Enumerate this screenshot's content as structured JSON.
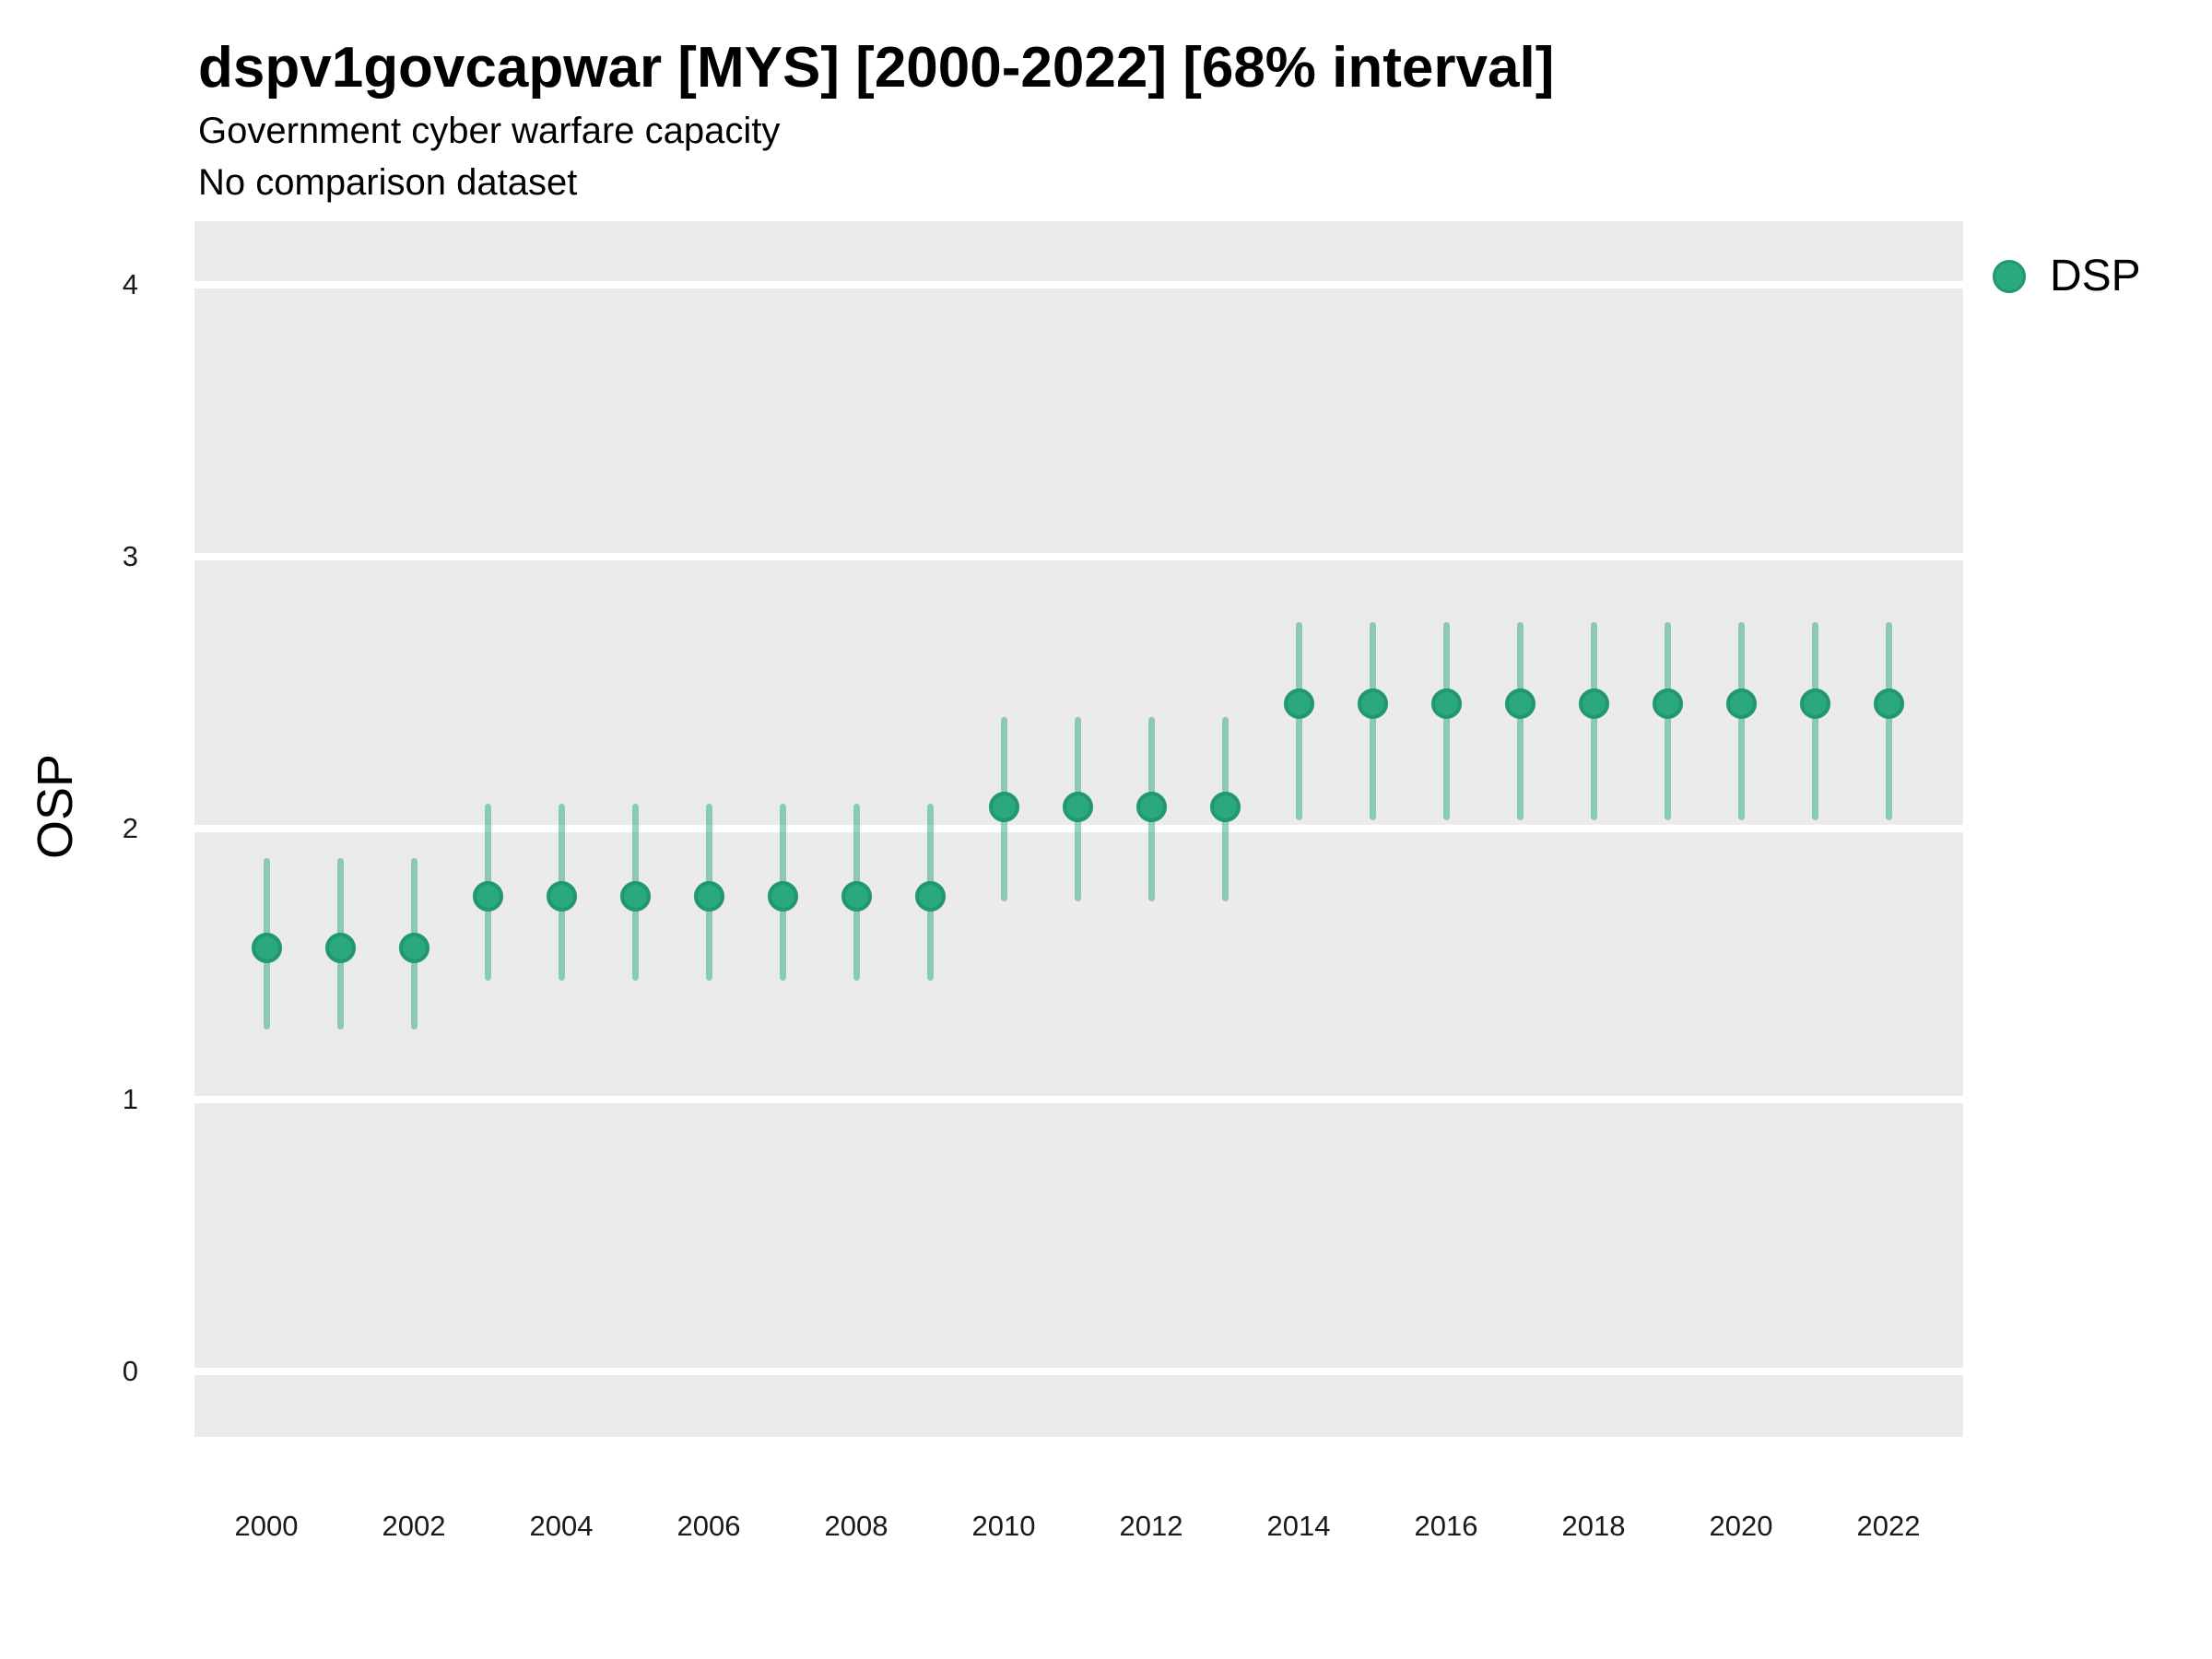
{
  "chart_data": {
    "type": "pointrange",
    "title": "dspv1govcapwar [MYS] [2000-2022] [68% interval]",
    "subtitle": "Government cyber warfare capacity",
    "subtitle2": "No comparison dataset",
    "xlabel": "",
    "ylabel": "OSP",
    "legend_position": "right-top",
    "grid": "horizontal-major-only",
    "x": [
      2000,
      2001,
      2002,
      2003,
      2004,
      2005,
      2006,
      2007,
      2008,
      2009,
      2010,
      2011,
      2012,
      2013,
      2014,
      2015,
      2016,
      2017,
      2018,
      2019,
      2020,
      2021,
      2022
    ],
    "series": [
      {
        "name": "DSP",
        "estimates": [
          1.56,
          1.56,
          1.56,
          1.75,
          1.75,
          1.75,
          1.75,
          1.75,
          1.75,
          1.75,
          2.08,
          2.08,
          2.08,
          2.08,
          2.46,
          2.46,
          2.46,
          2.46,
          2.46,
          2.46,
          2.46,
          2.46,
          2.46
        ],
        "lower": [
          1.26,
          1.26,
          1.26,
          1.44,
          1.44,
          1.44,
          1.44,
          1.44,
          1.44,
          1.44,
          1.73,
          1.73,
          1.73,
          1.73,
          2.03,
          2.03,
          2.03,
          2.03,
          2.03,
          2.03,
          2.03,
          2.03,
          2.03
        ],
        "upper": [
          1.89,
          1.89,
          1.89,
          2.09,
          2.09,
          2.09,
          2.09,
          2.09,
          2.09,
          2.09,
          2.41,
          2.41,
          2.41,
          2.41,
          2.76,
          2.76,
          2.76,
          2.76,
          2.76,
          2.76,
          2.76,
          2.76,
          2.76
        ]
      }
    ],
    "interval_label": "68% interval",
    "y_ticks": [
      {
        "value": 0,
        "label": "0"
      },
      {
        "value": 1,
        "label": "1"
      },
      {
        "value": 2,
        "label": "2"
      },
      {
        "value": 3,
        "label": "3"
      },
      {
        "value": 4,
        "label": "4"
      }
    ],
    "x_ticks": [
      {
        "value": 2000,
        "label": "2000"
      },
      {
        "value": 2002,
        "label": "2002"
      },
      {
        "value": 2004,
        "label": "2004"
      },
      {
        "value": 2006,
        "label": "2006"
      },
      {
        "value": 2008,
        "label": "2008"
      },
      {
        "value": 2010,
        "label": "2010"
      },
      {
        "value": 2012,
        "label": "2012"
      },
      {
        "value": 2014,
        "label": "2014"
      },
      {
        "value": 2016,
        "label": "2016"
      },
      {
        "value": 2018,
        "label": "2018"
      },
      {
        "value": 2020,
        "label": "2020"
      },
      {
        "value": 2022,
        "label": "2022"
      }
    ],
    "ylim": [
      -0.24,
      4.24
    ],
    "colors": {
      "point_fill": "#2aa87e",
      "point_ring": "#1f9770",
      "interval_line": "rgba(42,168,126,0.5)",
      "panel_background": "#ebebeb",
      "gridline": "#ffffff"
    },
    "legend": [
      {
        "label": "DSP",
        "color": "#2aa87e"
      }
    ]
  }
}
